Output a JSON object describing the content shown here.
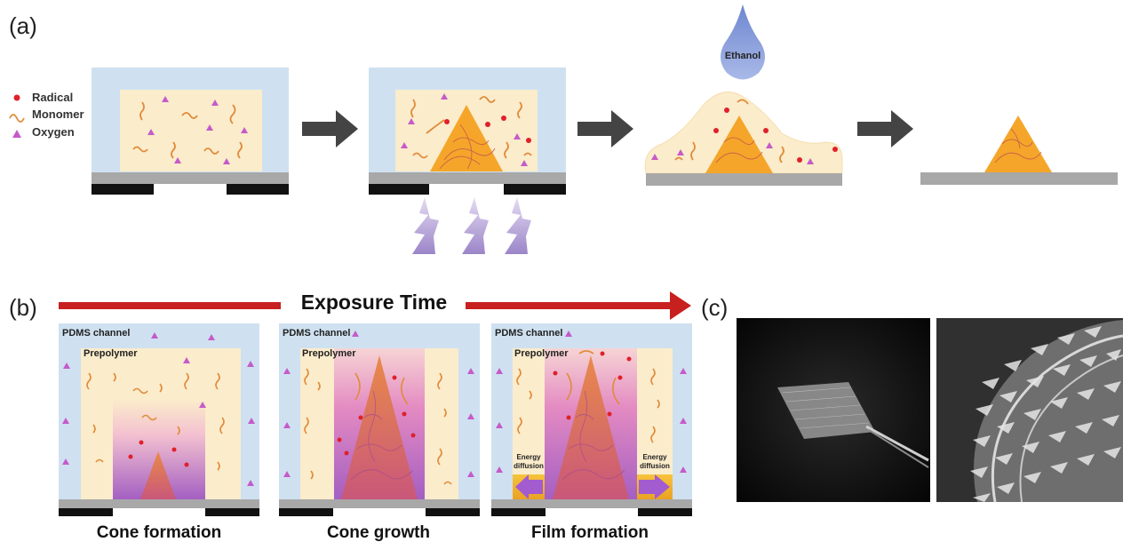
{
  "panel_a": {
    "letter": "(a)",
    "legend": {
      "radical": "Radical",
      "monomer": "Monomer",
      "oxygen": "Oxygen"
    },
    "drop_label": "Ethanol"
  },
  "panel_b": {
    "letter": "(b)",
    "exposure_label": "Exposure Time",
    "channel_label": "PDMS channel",
    "prepolymer_label": "Prepolymer",
    "energy_label_1": "Energy",
    "energy_label_2": "diffusion",
    "captions": [
      "Cone formation",
      "Cone growth",
      "Film formation"
    ]
  },
  "panel_c": {
    "letter": "(c)"
  },
  "colors": {
    "pdms": "#cfe1f1",
    "prepolymer": "#fbeccb",
    "cone": "#f5a62a",
    "substrate": "#a8a8a8",
    "mask": "#111111",
    "arrow": "#444444",
    "red_arrow": "#c8201f",
    "magenta": "#d45aa6",
    "radical": "#e0202a",
    "drop": "#8fa6dc"
  }
}
